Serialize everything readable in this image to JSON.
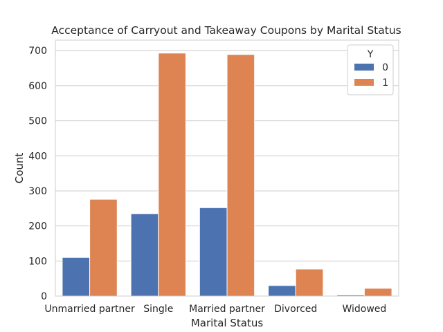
{
  "chart_data": {
    "type": "bar",
    "title": "Acceptance of Carryout and Takeaway Coupons by Marital Status",
    "xlabel": "Marital Status",
    "ylabel": "Count",
    "categories": [
      "Unmarried partner",
      "Single",
      "Married partner",
      "Divorced",
      "Widowed"
    ],
    "series": [
      {
        "name": "0",
        "values": [
          110,
          235,
          252,
          30,
          3
        ],
        "color": "#4c72b0"
      },
      {
        "name": "1",
        "values": [
          276,
          693,
          689,
          77,
          22
        ],
        "color": "#dd8452"
      }
    ],
    "ylim": [
      0,
      730
    ],
    "yticks": [
      0,
      100,
      200,
      300,
      400,
      500,
      600,
      700
    ],
    "grid": true,
    "legend": {
      "title": "Y",
      "placement": "top-right"
    }
  }
}
